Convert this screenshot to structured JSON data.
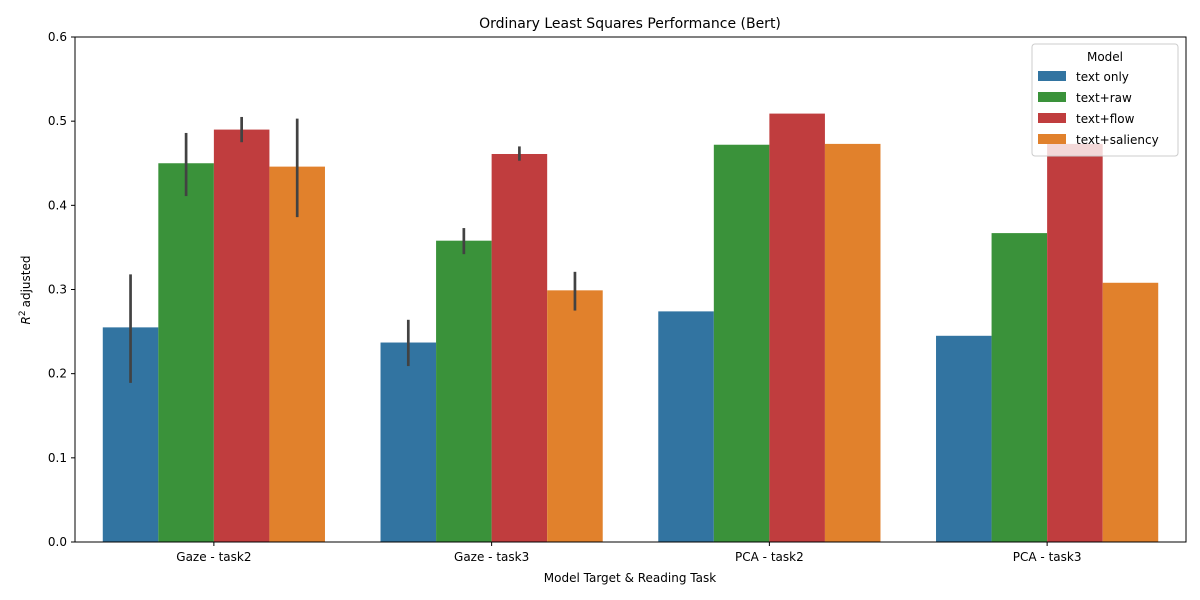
{
  "chart_data": {
    "type": "bar",
    "title": "Ordinary Least Squares Performance (Bert)",
    "xlabel": "Model Target & Reading Task",
    "ylabel": "adjusted",
    "ylabel_symbol": "R",
    "ylabel_superscript": "2",
    "ylim": [
      0,
      0.6
    ],
    "yticks": [
      0.0,
      0.1,
      0.2,
      0.3,
      0.4,
      0.5,
      0.6
    ],
    "ytick_labels": [
      "0.0",
      "0.1",
      "0.2",
      "0.3",
      "0.4",
      "0.5",
      "0.6"
    ],
    "categories": [
      "Gaze - task2",
      "Gaze - task3",
      "PCA - task2",
      "PCA - task3"
    ],
    "legend": {
      "title": "Model",
      "position": "top-right"
    },
    "series": [
      {
        "name": "text only",
        "color": "#3274a1",
        "values": [
          0.255,
          0.237,
          0.274,
          0.245
        ],
        "ci": [
          [
            0.189,
            0.318
          ],
          [
            0.209,
            0.264
          ],
          null,
          null
        ]
      },
      {
        "name": "text+raw",
        "color": "#3a923a",
        "values": [
          0.45,
          0.358,
          0.472,
          0.367
        ],
        "ci": [
          [
            0.411,
            0.486
          ],
          [
            0.342,
            0.373
          ],
          null,
          null
        ]
      },
      {
        "name": "text+flow",
        "color": "#c03d3e",
        "values": [
          0.49,
          0.461,
          0.509,
          0.473
        ],
        "ci": [
          [
            0.475,
            0.505
          ],
          [
            0.453,
            0.47
          ],
          null,
          null
        ]
      },
      {
        "name": "text+saliency",
        "color": "#e1812c",
        "values": [
          0.446,
          0.299,
          0.473,
          0.308
        ],
        "ci": [
          [
            0.386,
            0.503
          ],
          [
            0.275,
            0.321
          ],
          null,
          null
        ]
      }
    ]
  }
}
